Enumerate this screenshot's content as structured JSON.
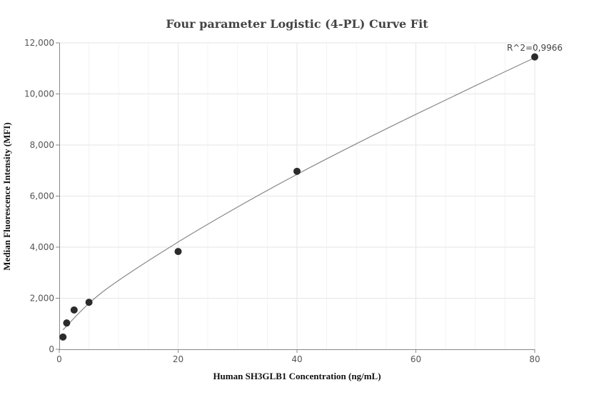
{
  "chart_data": {
    "type": "scatter",
    "title": "Four parameter Logistic (4-PL) Curve Fit",
    "xlabel": "Human SH3GLB1 Concentration (ng/mL)",
    "ylabel": "Median Fluorescence Intensity (MFI)",
    "xlim": [
      0,
      80
    ],
    "ylim": [
      0,
      12000
    ],
    "xticks": [
      0,
      20,
      40,
      60,
      80
    ],
    "yticks": [
      0,
      2000,
      4000,
      6000,
      8000,
      10000,
      12000
    ],
    "x_tick_labels": [
      "0",
      "20",
      "40",
      "60",
      "80"
    ],
    "y_tick_labels": [
      "0",
      "2,000",
      "4,000",
      "6,000",
      "8,000",
      "10,000",
      "12,000"
    ],
    "grid": true,
    "points": [
      {
        "x": 0.625,
        "y": 480
      },
      {
        "x": 1.25,
        "y": 1030
      },
      {
        "x": 2.5,
        "y": 1540
      },
      {
        "x": 5,
        "y": 1840
      },
      {
        "x": 20,
        "y": 3830
      },
      {
        "x": 40,
        "y": 6970
      },
      {
        "x": 80,
        "y": 11450
      }
    ],
    "fit_curve": {
      "x": [
        0.625,
        5,
        10,
        20,
        30,
        40,
        50,
        60,
        70,
        80
      ],
      "y": [
        760,
        1800,
        2700,
        4200,
        5570,
        6850,
        8050,
        9200,
        10320,
        11420
      ]
    },
    "annotation": "R^2=0,9966"
  }
}
